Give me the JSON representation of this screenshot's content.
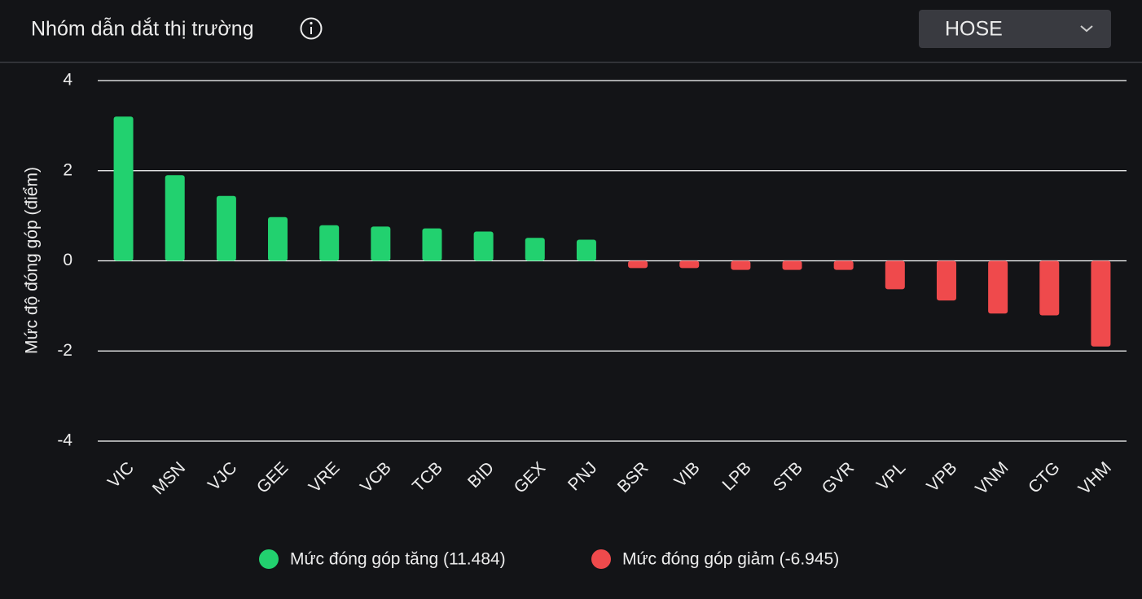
{
  "header": {
    "title": "Nhóm dẫn dắt thị trường",
    "dropdown": "HOSE"
  },
  "chart_data": {
    "type": "bar",
    "y_label": "Mức độ đóng góp (điểm)",
    "categories": [
      "VIC",
      "MSN",
      "VJC",
      "GEE",
      "VRE",
      "VCB",
      "TCB",
      "BID",
      "GEX",
      "PNJ",
      "BSR",
      "VIB",
      "LPB",
      "STB",
      "GVR",
      "VPL",
      "VPB",
      "VNM",
      "CTG",
      "VHM"
    ],
    "series": [
      {
        "name": "Mức đóng góp tăng (11.484)",
        "color": "#22d16f",
        "values": [
          3.2,
          1.9,
          1.44,
          0.97,
          0.79,
          0.76,
          0.72,
          0.65,
          0.51,
          0.47,
          null,
          null,
          null,
          null,
          null,
          null,
          null,
          null,
          null,
          null
        ]
      },
      {
        "name": "Mức đóng góp giảm (-6.945)",
        "color": "#ef4a4c",
        "values": [
          null,
          null,
          null,
          null,
          null,
          null,
          null,
          null,
          null,
          null,
          -0.16,
          -0.16,
          -0.2,
          -0.2,
          -0.2,
          -0.63,
          -0.88,
          -1.17,
          -1.21,
          -1.9
        ]
      }
    ],
    "ylim": [
      -4,
      4
    ],
    "yticks": [
      -4,
      -2,
      0,
      2,
      4
    ],
    "grid": true
  }
}
